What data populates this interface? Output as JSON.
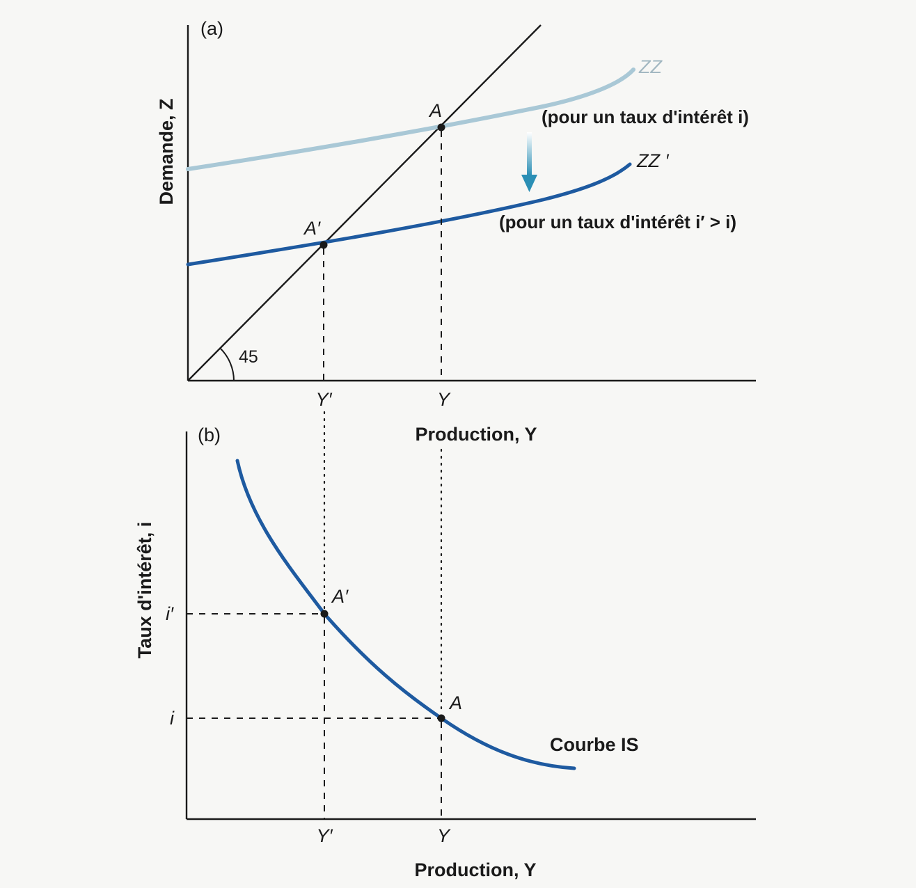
{
  "panel_a": {
    "label": "(a)",
    "y_axis_label": "Demande, Z",
    "x_axis_label": "Production, Y",
    "angle_label": "45",
    "x_ticks": [
      "Y′",
      "Y"
    ],
    "curve_zz": {
      "name": "ZZ",
      "note": "(pour un taux d'intérêt i)",
      "color": "#a9c8d6"
    },
    "curve_zz_prime": {
      "name": "ZZ ′",
      "note": "(pour un taux d'intérêt i′ > i)",
      "color": "#1e5aa0"
    },
    "point_a": "A",
    "point_a_prime": "A′",
    "arrow_color": "#2b8fb5"
  },
  "panel_b": {
    "label": "(b)",
    "y_axis_label": "Taux d'intérêt, i",
    "x_axis_label": "Production, Y",
    "x_ticks": [
      "Y′",
      "Y"
    ],
    "y_ticks": [
      "i′",
      "i"
    ],
    "curve_is": {
      "name": "Courbe IS",
      "color": "#1e5aa0"
    },
    "point_a": "A",
    "point_a_prime": "A′"
  }
}
